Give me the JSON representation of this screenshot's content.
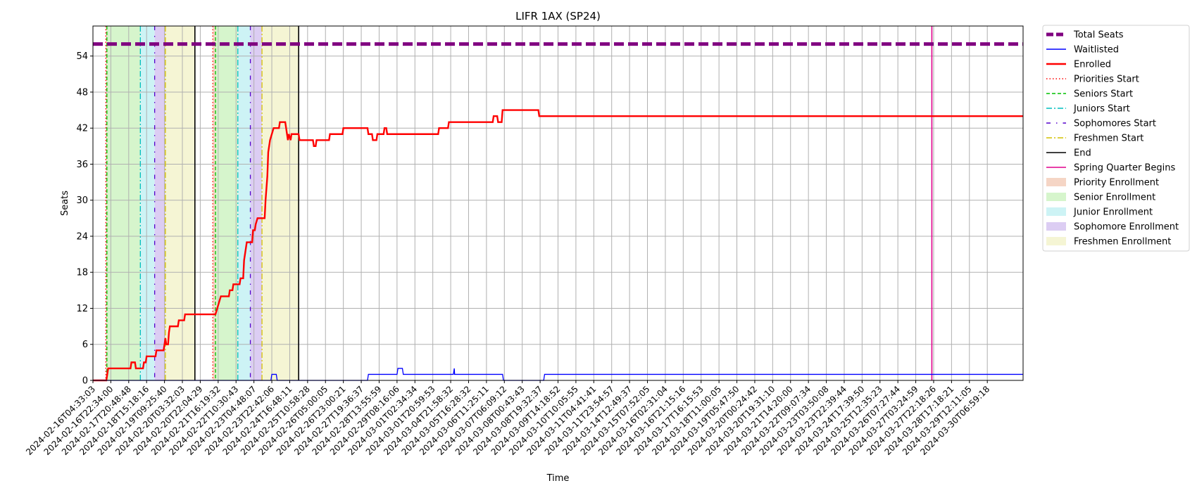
{
  "chart_data": {
    "type": "line",
    "title": "LIFR 1AX (SP24)",
    "xlabel": "Time",
    "ylabel": "Seats",
    "ylim": [
      0,
      59
    ],
    "yticks": [
      0,
      6,
      12,
      18,
      24,
      30,
      36,
      42,
      48,
      54
    ],
    "grid": true,
    "legend_placement": "outside-right",
    "x_tick_labels": [
      "2024-02-16T04:33:03",
      "2024-02-16T22:34:00",
      "2024-02-17T20:48:48",
      "2024-02-18T15:18:16",
      "2024-02-19T09:25:40",
      "2024-02-20T03:32:03",
      "2024-02-20T22:04:29",
      "2024-02-21T16:19:32",
      "2024-02-22T10:30:43",
      "2024-02-23T04:48:07",
      "2024-02-23T22:42:06",
      "2024-02-24T16:48:11",
      "2024-02-25T10:58:28",
      "2024-02-26T05:00:05",
      "2024-02-26T23:00:21",
      "2024-02-27T19:36:37",
      "2024-02-28T13:55:59",
      "2024-02-29T08:16:06",
      "2024-03-01T02:34:34",
      "2024-03-01T20:59:53",
      "2024-03-04T21:58:32",
      "2024-03-05T16:28:32",
      "2024-03-06T11:25:11",
      "2024-03-07T06:09:12",
      "2024-03-08T00:43:43",
      "2024-03-08T19:32:37",
      "2024-03-09T14:18:52",
      "2024-03-10T10:05:55",
      "2024-03-11T04:41:41",
      "2024-03-11T23:54:57",
      "2024-03-14T12:49:37",
      "2024-03-15T07:52:05",
      "2024-03-16T02:31:04",
      "2024-03-16T21:15:16",
      "2024-03-17T16:15:53",
      "2024-03-18T11:00:05",
      "2024-03-19T05:47:50",
      "2024-03-20T00:24:42",
      "2024-03-20T19:31:10",
      "2024-03-21T14:20:00",
      "2024-03-22T09:07:34",
      "2024-03-23T03:50:08",
      "2024-03-23T22:39:44",
      "2024-03-24T17:39:50",
      "2024-03-25T12:35:23",
      "2024-03-26T07:27:44",
      "2024-03-27T03:24:59",
      "2024-03-27T22:18:26",
      "2024-03-28T17:18:21",
      "2024-03-29T12:11:05",
      "2024-03-30T06:59:18"
    ],
    "x_range_index": [
      0,
      52
    ],
    "legend": [
      {
        "label": "Total Seats",
        "kind": "line",
        "color": "#800080",
        "dash": "dashed-thick"
      },
      {
        "label": "Waitlisted",
        "kind": "line",
        "color": "#0000ff",
        "dash": "solid"
      },
      {
        "label": "Enrolled",
        "kind": "line",
        "color": "#ff0000",
        "dash": "solid-thick"
      },
      {
        "label": "Priorities Start",
        "kind": "line",
        "color": "#ff0000",
        "dash": "dotted"
      },
      {
        "label": "Seniors Start",
        "kind": "line",
        "color": "#00c000",
        "dash": "dashed"
      },
      {
        "label": "Juniors Start",
        "kind": "line",
        "color": "#00bfbf",
        "dash": "dashdot"
      },
      {
        "label": "Sophomores Start",
        "kind": "line",
        "color": "#5500cc",
        "dash": "loose-dashdot"
      },
      {
        "label": "Freshmen Start",
        "kind": "line",
        "color": "#d4c000",
        "dash": "dashdot"
      },
      {
        "label": "End",
        "kind": "line",
        "color": "#000000",
        "dash": "solid"
      },
      {
        "label": "Spring Quarter Begins",
        "kind": "line",
        "color": "#e0008c",
        "dash": "solid"
      },
      {
        "label": "Priority Enrollment",
        "kind": "patch",
        "color": "#f5d5c5"
      },
      {
        "label": "Senior Enrollment",
        "kind": "patch",
        "color": "#d6f5cc"
      },
      {
        "label": "Junior Enrollment",
        "kind": "patch",
        "color": "#cdf3f5"
      },
      {
        "label": "Sophomore Enrollment",
        "kind": "patch",
        "color": "#dccdf3"
      },
      {
        "label": "Freshmen Enrollment",
        "kind": "patch",
        "color": "#f5f5d4"
      }
    ],
    "total_seats": 56,
    "phase_bands": [
      {
        "phase": "Priority Enrollment",
        "from": 0.72,
        "to": 0.78,
        "color": "#f5d5c5"
      },
      {
        "phase": "Senior Enrollment",
        "from": 0.78,
        "to": 2.65,
        "color": "#d6f5cc"
      },
      {
        "phase": "Junior Enrollment",
        "from": 2.65,
        "to": 3.45,
        "color": "#cdf3f5"
      },
      {
        "phase": "Sophomore Enrollment",
        "from": 3.45,
        "to": 4.05,
        "color": "#dccdf3"
      },
      {
        "phase": "Freshmen Enrollment",
        "from": 4.05,
        "to": 5.7,
        "color": "#f5f5d4"
      },
      {
        "phase": "Priority Enrollment",
        "from": 6.7,
        "to": 6.85,
        "color": "#f5d5c5"
      },
      {
        "phase": "Senior Enrollment",
        "from": 6.85,
        "to": 8.1,
        "color": "#d6f5cc"
      },
      {
        "phase": "Junior Enrollment",
        "from": 8.1,
        "to": 8.8,
        "color": "#cdf3f5"
      },
      {
        "phase": "Sophomore Enrollment",
        "from": 8.8,
        "to": 9.45,
        "color": "#dccdf3"
      },
      {
        "phase": "Freshmen Enrollment",
        "from": 9.45,
        "to": 11.5,
        "color": "#f5f5d4"
      }
    ],
    "phase_lines": [
      {
        "event": "Priorities Start",
        "at": 0.72
      },
      {
        "event": "Seniors Start",
        "at": 0.78
      },
      {
        "event": "Juniors Start",
        "at": 2.65
      },
      {
        "event": "Sophomores Start",
        "at": 3.45
      },
      {
        "event": "Freshmen Start",
        "at": 4.05
      },
      {
        "event": "End",
        "at": 5.7
      },
      {
        "event": "Priorities Start",
        "at": 6.7
      },
      {
        "event": "Seniors Start",
        "at": 6.85
      },
      {
        "event": "Juniors Start",
        "at": 8.1
      },
      {
        "event": "Sophomores Start",
        "at": 8.8
      },
      {
        "event": "Freshmen Start",
        "at": 9.45
      },
      {
        "event": "End",
        "at": 11.5
      },
      {
        "event": "Spring Quarter Begins",
        "at": 46.9
      }
    ],
    "series": [
      {
        "name": "Enrolled",
        "color": "#ff0000",
        "points": [
          [
            0,
            0
          ],
          [
            0.75,
            0
          ],
          [
            0.8,
            1
          ],
          [
            0.85,
            2
          ],
          [
            2.1,
            2
          ],
          [
            2.15,
            3
          ],
          [
            2.35,
            3
          ],
          [
            2.4,
            2
          ],
          [
            2.8,
            2
          ],
          [
            2.85,
            3
          ],
          [
            2.95,
            3
          ],
          [
            3.0,
            4
          ],
          [
            3.5,
            4
          ],
          [
            3.55,
            5
          ],
          [
            3.95,
            5
          ],
          [
            4.0,
            6
          ],
          [
            4.05,
            7
          ],
          [
            4.1,
            6
          ],
          [
            4.2,
            6
          ],
          [
            4.25,
            8
          ],
          [
            4.3,
            9
          ],
          [
            4.75,
            9
          ],
          [
            4.8,
            10
          ],
          [
            5.1,
            10
          ],
          [
            5.15,
            11
          ],
          [
            5.7,
            11
          ],
          [
            6.85,
            11
          ],
          [
            6.95,
            12
          ],
          [
            7.05,
            13
          ],
          [
            7.15,
            14
          ],
          [
            7.6,
            14
          ],
          [
            7.65,
            15
          ],
          [
            7.8,
            15
          ],
          [
            7.85,
            16
          ],
          [
            8.2,
            16
          ],
          [
            8.25,
            17
          ],
          [
            8.4,
            17
          ],
          [
            8.45,
            20
          ],
          [
            8.55,
            22
          ],
          [
            8.6,
            23
          ],
          [
            8.9,
            23
          ],
          [
            8.95,
            25
          ],
          [
            9.05,
            25
          ],
          [
            9.1,
            26
          ],
          [
            9.2,
            27
          ],
          [
            9.6,
            27
          ],
          [
            9.65,
            30
          ],
          [
            9.75,
            34
          ],
          [
            9.8,
            38
          ],
          [
            9.9,
            40
          ],
          [
            10.0,
            41
          ],
          [
            10.1,
            42
          ],
          [
            10.4,
            42
          ],
          [
            10.45,
            43
          ],
          [
            10.75,
            43
          ],
          [
            10.8,
            42
          ],
          [
            10.9,
            40
          ],
          [
            10.95,
            41
          ],
          [
            11.05,
            40
          ],
          [
            11.1,
            41
          ],
          [
            11.5,
            41
          ],
          [
            11.55,
            40
          ],
          [
            12.3,
            40
          ],
          [
            12.35,
            39
          ],
          [
            12.45,
            39
          ],
          [
            12.5,
            40
          ],
          [
            13.2,
            40
          ],
          [
            13.25,
            41
          ],
          [
            13.95,
            41
          ],
          [
            14.0,
            42
          ],
          [
            15.35,
            42
          ],
          [
            15.4,
            41
          ],
          [
            15.6,
            41
          ],
          [
            15.65,
            40
          ],
          [
            15.85,
            40
          ],
          [
            15.9,
            41
          ],
          [
            16.25,
            41
          ],
          [
            16.3,
            42
          ],
          [
            16.4,
            42
          ],
          [
            16.45,
            41
          ],
          [
            19.3,
            41
          ],
          [
            19.35,
            42
          ],
          [
            19.85,
            42
          ],
          [
            19.9,
            43
          ],
          [
            22.35,
            43
          ],
          [
            22.4,
            44
          ],
          [
            22.6,
            44
          ],
          [
            22.65,
            43
          ],
          [
            22.85,
            43
          ],
          [
            22.9,
            45
          ],
          [
            24.9,
            45
          ],
          [
            24.95,
            44
          ],
          [
            52,
            44
          ]
        ]
      },
      {
        "name": "Waitlisted",
        "color": "#0000ff",
        "points": [
          [
            0,
            0
          ],
          [
            9.95,
            0
          ],
          [
            10.0,
            1
          ],
          [
            10.25,
            1
          ],
          [
            10.3,
            0
          ],
          [
            15.35,
            0
          ],
          [
            15.4,
            1
          ],
          [
            17.0,
            1
          ],
          [
            17.05,
            2
          ],
          [
            17.3,
            2
          ],
          [
            17.35,
            1
          ],
          [
            20.15,
            1
          ],
          [
            20.2,
            2
          ],
          [
            20.22,
            1
          ],
          [
            22.9,
            1
          ],
          [
            22.95,
            0
          ],
          [
            25.2,
            0
          ],
          [
            25.25,
            1
          ],
          [
            52,
            1
          ]
        ]
      }
    ]
  }
}
